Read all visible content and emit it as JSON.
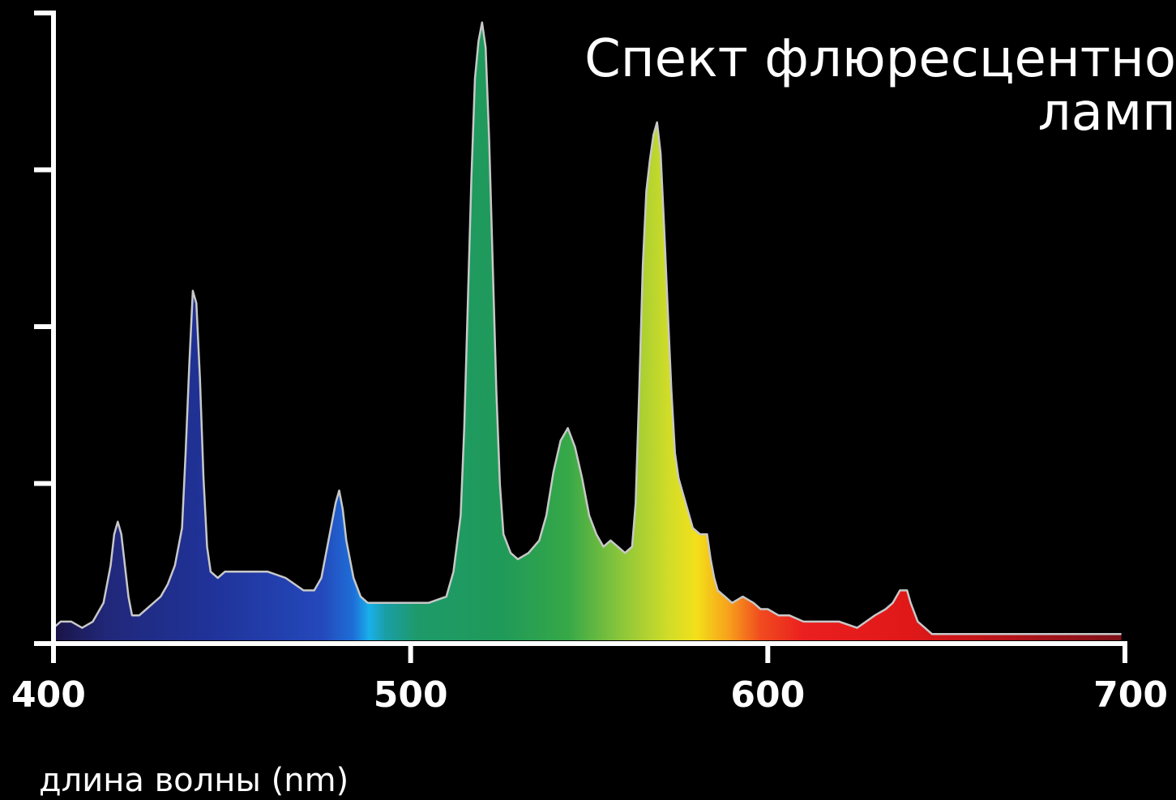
{
  "chart_data": {
    "type": "area",
    "title_lines": [
      "Спект флюресцентно",
      "ламп"
    ],
    "xlabel": "длина волны (nm)",
    "ylabel": "",
    "xlim": [
      400,
      700
    ],
    "ylim": [
      0,
      100
    ],
    "x_ticks": [
      "400",
      "500",
      "600",
      "700"
    ],
    "y_tick_count": 4,
    "grid": false,
    "fill": "visible-spectrum-gradient",
    "outline_color": "#c8c8c8",
    "axis_color": "#ffffff",
    "background": "#000000",
    "series": [
      {
        "x": [
          400,
          402,
          405,
          408,
          411,
          414,
          416,
          417,
          418,
          419,
          420,
          421,
          422,
          424,
          426,
          428,
          430,
          432,
          434,
          436,
          437,
          438,
          439,
          440,
          441,
          442,
          443,
          444,
          446,
          448,
          450,
          455,
          460,
          465,
          470,
          473,
          475,
          476,
          477,
          478,
          479,
          480,
          481,
          482,
          484,
          486,
          488,
          490,
          492,
          495,
          500,
          505,
          510,
          512,
          514,
          515,
          516,
          517,
          518,
          519,
          520,
          521,
          522,
          523,
          524,
          525,
          526,
          528,
          530,
          533,
          536,
          538,
          540,
          542,
          544,
          546,
          548,
          550,
          552,
          554,
          556,
          558,
          560,
          562,
          563,
          564,
          565,
          566,
          567,
          568,
          569,
          570,
          571,
          572,
          573,
          574,
          575,
          577,
          579,
          581,
          583,
          584,
          585,
          586,
          588,
          590,
          593,
          596,
          598,
          600,
          603,
          606,
          610,
          615,
          620,
          625,
          630,
          633,
          635,
          637,
          639,
          640,
          642,
          644,
          646,
          648,
          650,
          655,
          660,
          670,
          680,
          690,
          699
        ],
        "y": [
          2,
          3,
          3,
          2,
          3,
          6,
          12,
          17,
          19,
          17,
          12,
          7,
          4,
          4,
          5,
          6,
          7,
          9,
          12,
          18,
          30,
          44,
          56,
          54,
          42,
          26,
          15,
          11,
          10,
          11,
          11,
          11,
          11,
          10,
          8,
          8,
          10,
          13,
          16,
          19,
          22,
          24,
          21,
          16,
          10,
          7,
          6,
          6,
          6,
          6,
          6,
          6,
          7,
          11,
          20,
          34,
          54,
          74,
          90,
          96,
          99,
          95,
          80,
          60,
          40,
          25,
          17,
          14,
          13,
          14,
          16,
          20,
          27,
          32,
          34,
          31,
          26,
          20,
          17,
          15,
          16,
          15,
          14,
          15,
          22,
          40,
          60,
          72,
          77,
          81,
          83,
          78,
          66,
          53,
          40,
          30,
          26,
          22,
          18,
          17,
          17,
          13,
          10,
          8,
          7,
          6,
          7,
          6,
          5,
          5,
          4,
          4,
          3,
          3,
          3,
          2,
          4,
          5,
          6,
          8,
          8,
          6,
          3,
          2,
          1,
          1,
          1,
          1,
          1,
          1,
          1,
          1,
          1
        ]
      }
    ]
  }
}
